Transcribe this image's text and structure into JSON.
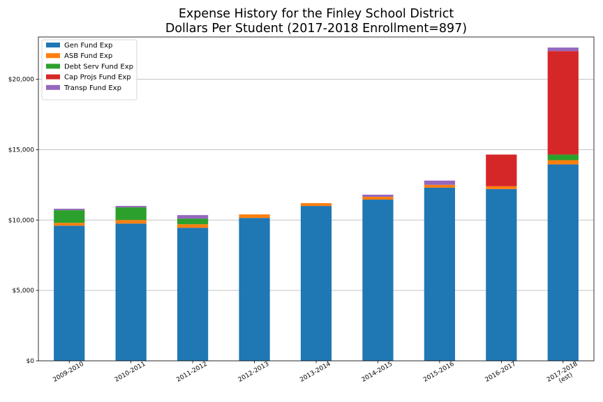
{
  "chart_data": {
    "type": "bar",
    "stacked": true,
    "title": "Expense History for the Finley School District",
    "subtitle": "Dollars Per Student (2017-2018 Enrollment=897)",
    "xlabel": "",
    "ylabel": "",
    "ylim": [
      0,
      23000
    ],
    "yticks": [
      0,
      5000,
      10000,
      15000,
      20000
    ],
    "ytick_labels": [
      "$0",
      "$5,000",
      "$10,000",
      "$15,000",
      "$20,000"
    ],
    "grid": "horizontal",
    "legend_position": "top-left",
    "categories": [
      "2009-2010",
      "2010-2011",
      "2011-2012",
      "2012-2013",
      "2013-2014",
      "2014-2015",
      "2015-2016",
      "2016-2017",
      "2017-2018\n(est)"
    ],
    "series": [
      {
        "name": "Gen Fund Exp",
        "color": "#1f77b4",
        "values": [
          9600,
          9750,
          9450,
          10150,
          11000,
          11450,
          12300,
          12200,
          13950
        ]
      },
      {
        "name": "ASB Fund Exp",
        "color": "#ff7f0e",
        "values": [
          200,
          250,
          250,
          250,
          200,
          200,
          200,
          200,
          300
        ]
      },
      {
        "name": "Debt Serv Fund Exp",
        "color": "#2ca02c",
        "values": [
          900,
          900,
          400,
          0,
          0,
          0,
          0,
          0,
          400
        ]
      },
      {
        "name": "Cap Projs Fund Exp",
        "color": "#d62728",
        "values": [
          0,
          0,
          0,
          0,
          0,
          0,
          0,
          2250,
          7350
        ]
      },
      {
        "name": "Transp Fund Exp",
        "color": "#9467bd",
        "values": [
          100,
          100,
          250,
          0,
          0,
          150,
          300,
          0,
          250
        ]
      }
    ]
  }
}
